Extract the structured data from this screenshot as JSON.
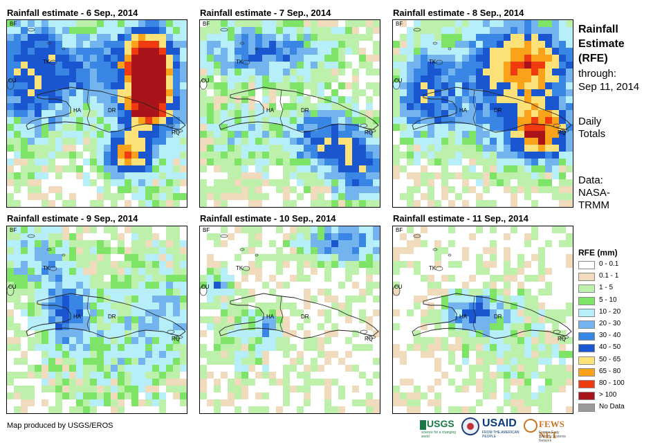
{
  "panels": [
    {
      "title": "Rainfall estimate - 6 Sep., 2014",
      "day": 6
    },
    {
      "title": "Rainfall estimate - 7 Sep., 2014",
      "day": 7
    },
    {
      "title": "Rainfall estimate - 8 Sep., 2014",
      "day": 8
    },
    {
      "title": "Rainfall estimate - 9 Sep., 2014",
      "day": 9
    },
    {
      "title": "Rainfall estimate - 10 Sep., 2014",
      "day": 10
    },
    {
      "title": "Rainfall estimate - 11 Sep., 2014",
      "day": 11
    }
  ],
  "map_labels": {
    "bf": "BF",
    "tk": "TK",
    "cu": "CU",
    "ha": "HA",
    "dr": "DR",
    "rq": "RQ"
  },
  "side": {
    "title_lines": [
      "Rainfall",
      "Estimate",
      "(RFE)"
    ],
    "through_label": "through:",
    "through_date": "Sep 11, 2014",
    "period_lines": [
      "Daily",
      "Totals"
    ],
    "data_lines": [
      "Data:",
      "NASA-",
      "TRMM"
    ]
  },
  "legend": {
    "title": "RFE (mm)",
    "items": [
      {
        "label": "0 - 0.1",
        "color": "#ffffff"
      },
      {
        "label": "0.1 - 1",
        "color": "#f0dcbc"
      },
      {
        "label": "1 - 5",
        "color": "#bdf0aa"
      },
      {
        "label": "5 - 10",
        "color": "#7ee468"
      },
      {
        "label": "10 - 20",
        "color": "#b6eefa"
      },
      {
        "label": "20 - 30",
        "color": "#74b4ee"
      },
      {
        "label": "30 - 40",
        "color": "#3a86e4"
      },
      {
        "label": "40 - 50",
        "color": "#1a56d0"
      },
      {
        "label": "50 - 65",
        "color": "#fde27a"
      },
      {
        "label": "65 - 80",
        "color": "#f9a21a"
      },
      {
        "label": "80 - 100",
        "color": "#f03a10"
      },
      {
        "label": "> 100",
        "color": "#a8141a"
      },
      {
        "label": "No Data",
        "color": "#9a9a9a"
      }
    ]
  },
  "credit": "Map produced by USGS/EROS",
  "logos": {
    "usgs": "USGS",
    "usgs_tag": "science for a changing world",
    "usaid": "USAID",
    "usaid_tag": "FROM THE AMERICAN PEOPLE",
    "fews": "FEWS NET",
    "fews_tag": "Famine Early Warning Systems Network"
  }
}
